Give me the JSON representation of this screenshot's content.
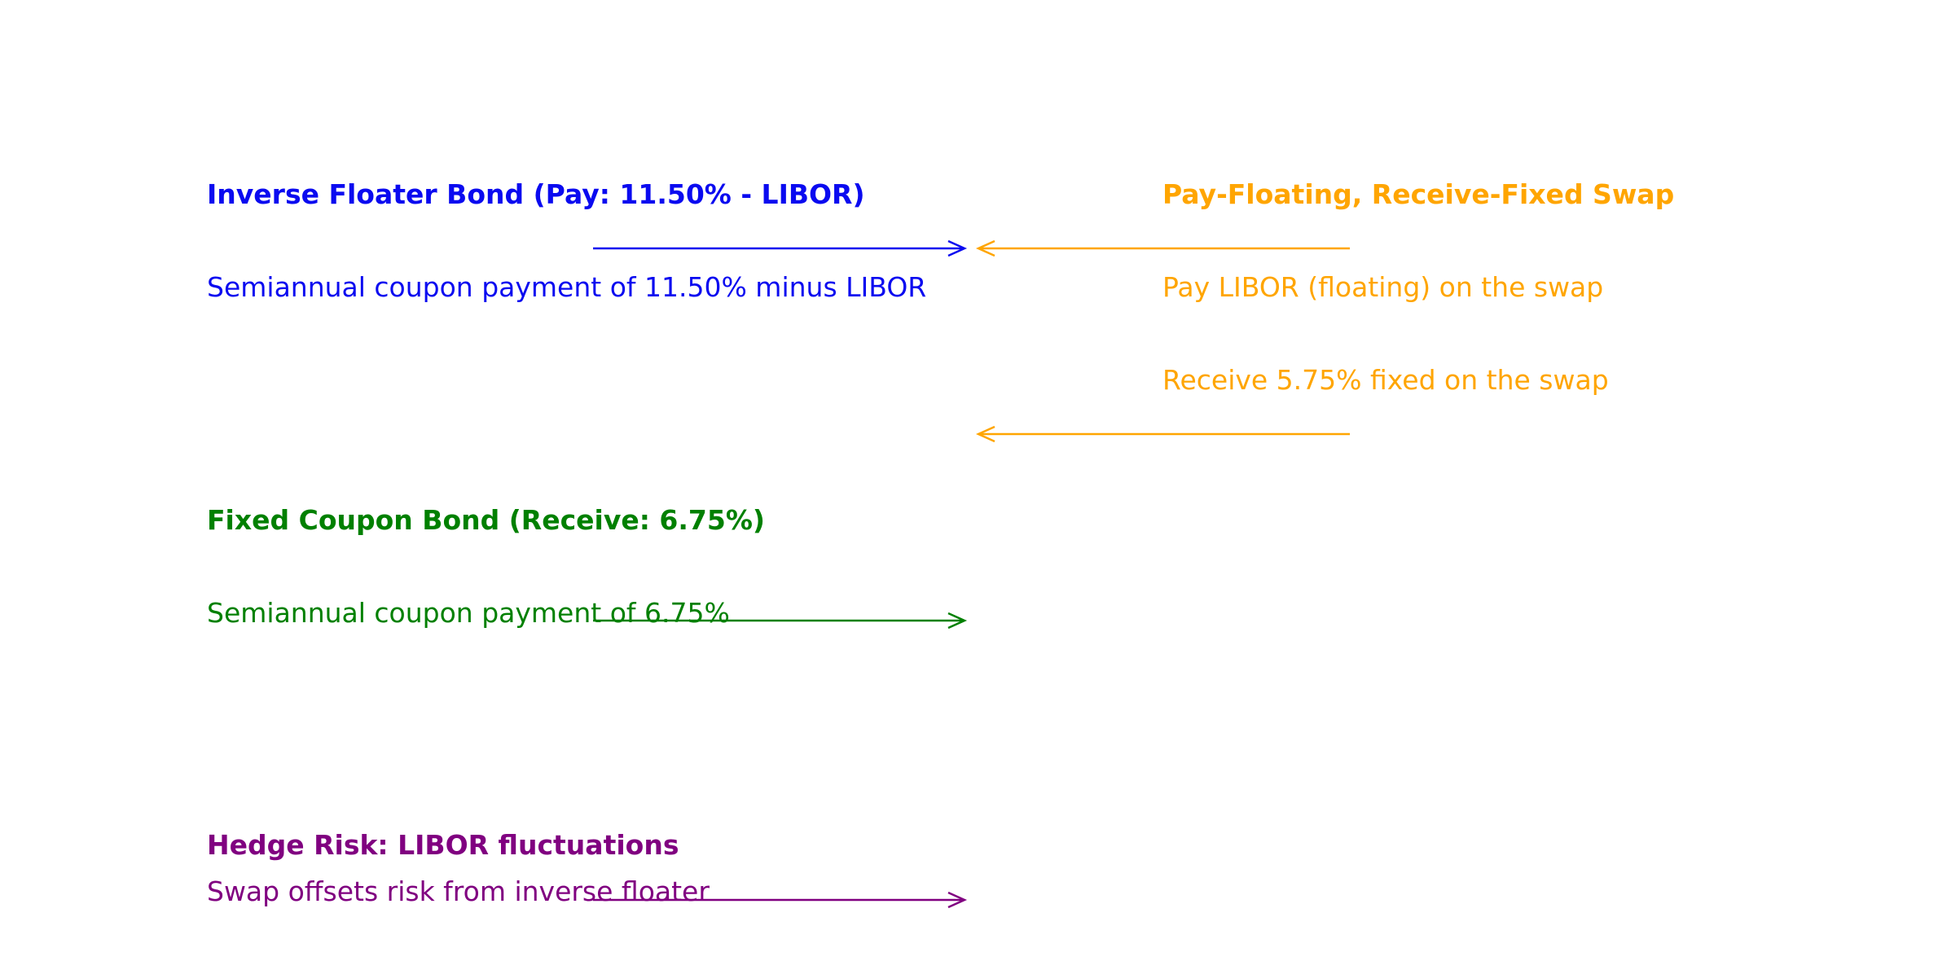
{
  "colors": {
    "bond": "#0a0af0",
    "swap": "#ffa500",
    "fixed": "#008000",
    "hedge": "#800080"
  },
  "inverse_floater": {
    "title": "Inverse Floater Bond (Pay: 11.50% - LIBOR)",
    "description": "Semiannual coupon payment of 11.50% minus LIBOR"
  },
  "swap": {
    "title": "Pay-Floating, Receive-Fixed Swap",
    "pay_text": "Pay LIBOR (floating) on the swap",
    "receive_text": "Receive 5.75% fixed on the swap"
  },
  "fixed_bond": {
    "title": "Fixed Coupon Bond (Receive: 6.75%)",
    "description": "Semiannual coupon payment of 6.75%"
  },
  "hedge": {
    "title": "Hedge Risk: LIBOR fluctuations",
    "description": "Swap offsets risk from inverse floater"
  }
}
